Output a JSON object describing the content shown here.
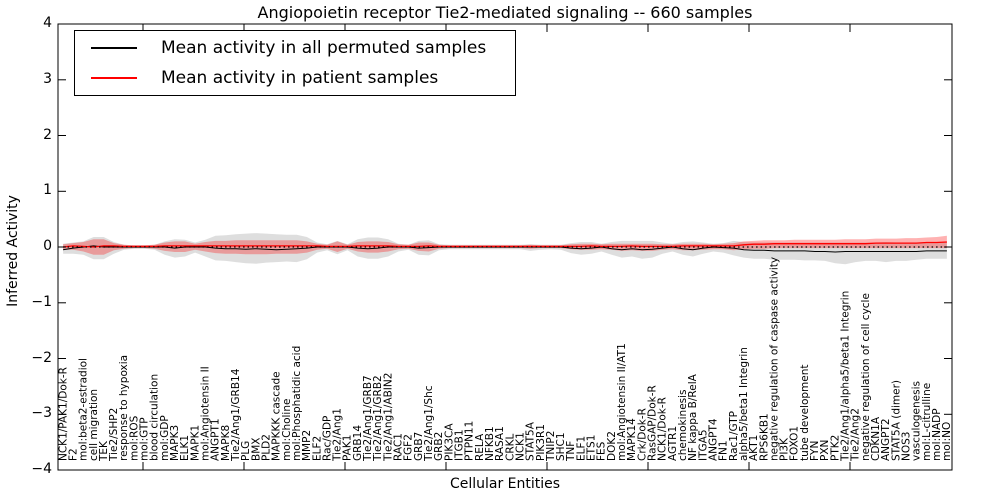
{
  "title": "Angiopoietin receptor Tie2-mediated signaling -- 660 samples",
  "axes": {
    "xlabel": "Cellular Entities",
    "ylabel": "Inferred Activity",
    "yticks": [
      4,
      3,
      2,
      1,
      0,
      -1,
      -2,
      -3,
      -4
    ],
    "ylim": [
      -4,
      4
    ],
    "grid": false
  },
  "legend": {
    "position": "upper-left",
    "items": [
      {
        "label": "Mean activity in all permuted samples",
        "color": "#000000"
      },
      {
        "label": "Mean activity in patient samples",
        "color": "#ff0000"
      }
    ]
  },
  "colors": {
    "permuted_line": "#000000",
    "patient_line": "#ff0000",
    "permuted_band": "#000000",
    "patient_band": "#ff0000",
    "zero_line": "#000000",
    "frame": "#000000",
    "background": "#ffffff"
  },
  "chart_data": {
    "type": "line",
    "title": "Angiopoietin receptor Tie2-mediated signaling -- 660 samples",
    "xlabel": "Cellular Entities",
    "ylabel": "Inferred Activity",
    "ylim": [
      -4,
      4
    ],
    "zero_line_dotted": true,
    "legend_position": "upper-left",
    "categories": [
      "NCK1/PAK1/Dok-R",
      "F2",
      "mol:beta2-estradiol",
      "cell migration",
      "TEK",
      "Tie2/SHP2",
      "response to hypoxia",
      "mol:ROS",
      "mol:GTP",
      "blood circulation",
      "mol:GDP",
      "MAPK3",
      "ELK1",
      "MAPK1",
      "mol:Angiotensin II",
      "ANGPT1",
      "MAPK8",
      "Tie2/Ang1/GRB14",
      "PLG",
      "BMX",
      "PLD2",
      "MAPKKK cascade",
      "mol:Choline",
      "mol:Phosphatidic acid",
      "MMP2",
      "ELF2",
      "Rac/GDP",
      "Tie2/Ang1",
      "PAK1",
      "GRB14",
      "Tie2/Ang1/GRB7",
      "Tie2/Ang1/GRB2",
      "Tie2/Ang1/ABIN2",
      "RAC1",
      "FGF2",
      "GRB7",
      "Tie2/Ang1/Shc",
      "GRB2",
      "PIK3CA",
      "ITGB1",
      "PTPN11",
      "RELA",
      "NFKB1",
      "RASA1",
      "CRKL",
      "NCK1",
      "STAT5A",
      "PIK3R1",
      "TNIP2",
      "SHC1",
      "TNF",
      "ELF1",
      "ETS1",
      "FES",
      "DOK2",
      "mol:Angiotensin II/AT1",
      "MAPK14",
      "Crk/Dok-R",
      "RasGAP/Dok-R",
      "NCK1/Dok-R",
      "AGTR1",
      "chemokinesis",
      "NF kappa B/RelA",
      "ITGA5",
      "ANGPT4",
      "FN1",
      "Rac1/GTP",
      "alpha5/beta1 Integrin",
      "AKT1",
      "RPS6KB1",
      "negative regulation of caspase activity",
      "PI3K",
      "FOXO1",
      "tube development",
      "FYN",
      "PXN",
      "PTK2",
      "Tie2/Ang1/alpha5/beta1 Integrin",
      "Tie2/Ang2",
      "negative regulation of cell cycle",
      "CDKN1A",
      "ANGPT2",
      "STAT5A (dimer)",
      "NOS3",
      "vasculogenesis",
      "mol:L-citrulline",
      "mol:NADP",
      "mol:NO"
    ],
    "series": [
      {
        "name": "Mean activity in all permuted samples",
        "color": "#000000",
        "values": [
          -0.05,
          -0.02,
          0,
          0.02,
          0,
          0,
          0,
          0,
          0,
          0,
          0,
          -0.02,
          0,
          0,
          0,
          -0.02,
          -0.03,
          -0.03,
          -0.04,
          -0.03,
          -0.04,
          -0.05,
          -0.04,
          -0.03,
          -0.02,
          0,
          0,
          0,
          0,
          -0.02,
          -0.03,
          -0.02,
          0,
          0,
          0,
          -0.02,
          -0.01,
          0,
          0,
          0,
          0,
          0,
          0,
          0,
          0,
          0,
          0,
          0,
          0,
          0,
          -0.02,
          -0.03,
          -0.02,
          0,
          -0.03,
          -0.05,
          -0.03,
          -0.05,
          -0.04,
          -0.02,
          0,
          -0.03,
          -0.05,
          -0.02,
          0,
          -0.01,
          -0.02,
          -0.05,
          -0.06,
          -0.06,
          -0.07,
          -0.07,
          -0.07,
          -0.07,
          -0.08,
          -0.08,
          -0.09,
          -0.08,
          -0.08,
          -0.08,
          -0.08,
          -0.08,
          -0.08,
          -0.08,
          -0.08,
          -0.07,
          -0.07,
          -0.07
        ]
      },
      {
        "name": "Mean activity in patient samples",
        "color": "#ff0000",
        "values": [
          0,
          0.02,
          0.01,
          0,
          0.02,
          0.02,
          0.01,
          0.01,
          0.01,
          0.01,
          0.02,
          0.02,
          0.02,
          0.02,
          0.02,
          0.02,
          0.02,
          0.02,
          0.02,
          0.02,
          0.02,
          0.02,
          0.02,
          0.02,
          0.02,
          0.02,
          0.01,
          0.01,
          0.01,
          0.02,
          0.02,
          0.02,
          0.02,
          0.01,
          0.01,
          0.01,
          0.02,
          0.01,
          0.01,
          0.01,
          0.01,
          0.01,
          0.01,
          0.01,
          0.01,
          0.01,
          0.01,
          0.01,
          0.01,
          0.01,
          0.01,
          0.01,
          0.02,
          0.01,
          0.01,
          0.01,
          0.02,
          0.01,
          0.01,
          0.01,
          0.01,
          0.02,
          0.02,
          0.02,
          0.02,
          0.02,
          0.02,
          0.04,
          0.05,
          0.05,
          0.06,
          0.06,
          0.06,
          0.06,
          0.06,
          0.06,
          0.06,
          0.06,
          0.06,
          0.06,
          0.07,
          0.07,
          0.07,
          0.07,
          0.07,
          0.08,
          0.08,
          0.09
        ]
      }
    ],
    "bands": [
      {
        "name": "permuted samples spread",
        "color": "#000000",
        "opacity": 0.13,
        "lower": [
          -0.12,
          -0.12,
          -0.14,
          -0.22,
          -0.22,
          -0.12,
          -0.05,
          -0.03,
          -0.03,
          -0.05,
          -0.14,
          -0.19,
          -0.17,
          -0.1,
          -0.17,
          -0.24,
          -0.25,
          -0.27,
          -0.29,
          -0.3,
          -0.28,
          -0.27,
          -0.26,
          -0.27,
          -0.22,
          -0.1,
          -0.06,
          -0.13,
          -0.06,
          -0.17,
          -0.21,
          -0.21,
          -0.17,
          -0.08,
          -0.05,
          -0.14,
          -0.15,
          -0.06,
          -0.04,
          -0.04,
          -0.04,
          -0.04,
          -0.04,
          -0.04,
          -0.04,
          -0.04,
          -0.07,
          -0.05,
          -0.04,
          -0.05,
          -0.11,
          -0.14,
          -0.12,
          -0.08,
          -0.14,
          -0.19,
          -0.17,
          -0.21,
          -0.19,
          -0.12,
          -0.08,
          -0.14,
          -0.17,
          -0.12,
          -0.08,
          -0.1,
          -0.15,
          -0.19,
          -0.21,
          -0.21,
          -0.23,
          -0.23,
          -0.23,
          -0.24,
          -0.24,
          -0.25,
          -0.29,
          -0.31,
          -0.27,
          -0.25,
          -0.25,
          -0.27,
          -0.25,
          -0.25,
          -0.23,
          -0.21,
          -0.21,
          -0.21
        ],
        "upper": [
          0.06,
          0.08,
          0.1,
          0.18,
          0.18,
          0.09,
          0.04,
          0.03,
          0.03,
          0.04,
          0.1,
          0.14,
          0.13,
          0.08,
          0.13,
          0.2,
          0.21,
          0.23,
          0.24,
          0.25,
          0.24,
          0.23,
          0.22,
          0.22,
          0.18,
          0.08,
          0.05,
          0.11,
          0.05,
          0.14,
          0.17,
          0.17,
          0.14,
          0.06,
          0.04,
          0.11,
          0.12,
          0.05,
          0.04,
          0.04,
          0.04,
          0.04,
          0.04,
          0.04,
          0.04,
          0.04,
          0.05,
          0.04,
          0.04,
          0.04,
          0.07,
          0.09,
          0.09,
          0.06,
          0.09,
          0.11,
          0.11,
          0.11,
          0.11,
          0.08,
          0.06,
          0.09,
          0.1,
          0.08,
          0.06,
          0.07,
          0.11,
          0.09,
          0.08,
          0.08,
          0.08,
          0.08,
          0.08,
          0.08,
          0.08,
          0.08,
          0.08,
          0.08,
          0.08,
          0.08,
          0.08,
          0.09,
          0.08,
          0.08,
          0.08,
          0.08,
          0.08,
          0.08
        ]
      },
      {
        "name": "patient samples spread",
        "color": "#ff0000",
        "opacity": 0.3,
        "lower": [
          -0.05,
          -0.05,
          -0.08,
          -0.14,
          -0.14,
          -0.06,
          -0.03,
          -0.02,
          -0.02,
          -0.03,
          -0.07,
          -0.09,
          -0.09,
          -0.05,
          -0.08,
          -0.11,
          -0.12,
          -0.12,
          -0.13,
          -0.13,
          -0.13,
          -0.12,
          -0.12,
          -0.12,
          -0.1,
          -0.05,
          -0.03,
          -0.09,
          -0.03,
          -0.08,
          -0.1,
          -0.1,
          -0.08,
          -0.04,
          -0.03,
          -0.07,
          -0.08,
          -0.03,
          -0.02,
          -0.02,
          -0.02,
          -0.02,
          -0.02,
          -0.02,
          -0.02,
          -0.02,
          -0.03,
          -0.02,
          -0.02,
          -0.02,
          -0.04,
          -0.05,
          -0.05,
          -0.04,
          -0.05,
          -0.07,
          -0.06,
          -0.07,
          -0.07,
          -0.05,
          -0.04,
          -0.06,
          -0.06,
          -0.05,
          -0.04,
          -0.04,
          -0.06,
          -0.04,
          -0.03,
          -0.03,
          -0.02,
          -0.02,
          -0.02,
          -0.02,
          -0.02,
          -0.02,
          -0.02,
          -0.02,
          -0.02,
          -0.02,
          -0.02,
          -0.02,
          -0.02,
          -0.02,
          -0.02,
          -0.02,
          -0.02,
          -0.02
        ],
        "upper": [
          0.05,
          0.07,
          0.09,
          0.14,
          0.14,
          0.07,
          0.04,
          0.03,
          0.03,
          0.04,
          0.08,
          0.1,
          0.1,
          0.06,
          0.09,
          0.11,
          0.11,
          0.12,
          0.12,
          0.12,
          0.12,
          0.12,
          0.12,
          0.12,
          0.1,
          0.06,
          0.04,
          0.1,
          0.04,
          0.09,
          0.1,
          0.1,
          0.09,
          0.05,
          0.04,
          0.08,
          0.08,
          0.04,
          0.03,
          0.03,
          0.03,
          0.03,
          0.03,
          0.03,
          0.03,
          0.03,
          0.04,
          0.03,
          0.03,
          0.03,
          0.05,
          0.06,
          0.06,
          0.05,
          0.06,
          0.06,
          0.06,
          0.06,
          0.06,
          0.05,
          0.05,
          0.06,
          0.06,
          0.06,
          0.05,
          0.06,
          0.07,
          0.1,
          0.11,
          0.12,
          0.12,
          0.12,
          0.13,
          0.13,
          0.13,
          0.13,
          0.13,
          0.14,
          0.14,
          0.14,
          0.15,
          0.15,
          0.15,
          0.16,
          0.16,
          0.17,
          0.18,
          0.2
        ]
      }
    ]
  }
}
